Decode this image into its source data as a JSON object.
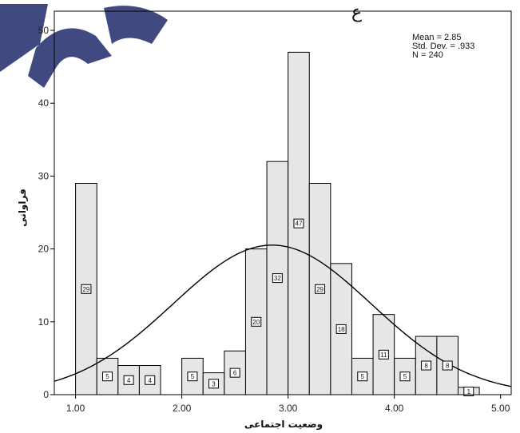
{
  "chart_data": {
    "type": "bar",
    "chart_kind": "histogram",
    "xlabel": "وضعیت اجتماعی",
    "ylabel": "فراوانی",
    "xlim": [
      0.8,
      5.1
    ],
    "ylim": [
      0,
      50
    ],
    "x_ticks": [
      1.0,
      2.0,
      3.0,
      4.0,
      5.0
    ],
    "x_tick_labels": [
      "1.00",
      "2.00",
      "3.00",
      "4.00",
      "5.00"
    ],
    "y_ticks": [
      0,
      10,
      20,
      30,
      40,
      50
    ],
    "y_tick_labels": [
      "0",
      "10",
      "20",
      "30",
      "40",
      "50"
    ],
    "bin_width": 0.2,
    "bins": [
      {
        "x0": 1.0,
        "count": 29
      },
      {
        "x0": 1.2,
        "count": 5
      },
      {
        "x0": 1.4,
        "count": 4
      },
      {
        "x0": 1.6,
        "count": 4
      },
      {
        "x0": 2.0,
        "count": 5
      },
      {
        "x0": 2.2,
        "count": 3
      },
      {
        "x0": 2.4,
        "count": 6
      },
      {
        "x0": 2.6,
        "count": 20
      },
      {
        "x0": 2.8,
        "count": 32
      },
      {
        "x0": 3.0,
        "count": 47
      },
      {
        "x0": 3.2,
        "count": 29
      },
      {
        "x0": 3.4,
        "count": 18
      },
      {
        "x0": 3.6,
        "count": 5
      },
      {
        "x0": 3.8,
        "count": 11
      },
      {
        "x0": 4.0,
        "count": 5
      },
      {
        "x0": 4.2,
        "count": 8
      },
      {
        "x0": 4.4,
        "count": 8
      },
      {
        "x0": 4.6,
        "count": 1
      }
    ],
    "normal_curve": {
      "mean": 2.85,
      "std_dev": 0.933,
      "n": 240
    },
    "stats_lines": [
      "Mean = 2.85",
      "Std. Dev. = .933",
      "N = 240"
    ],
    "stats_position": "top-right",
    "grid": false,
    "colors": {
      "bar_fill": "#e6e6e6",
      "bar_stroke": "#000000",
      "curve": "#000000"
    }
  }
}
